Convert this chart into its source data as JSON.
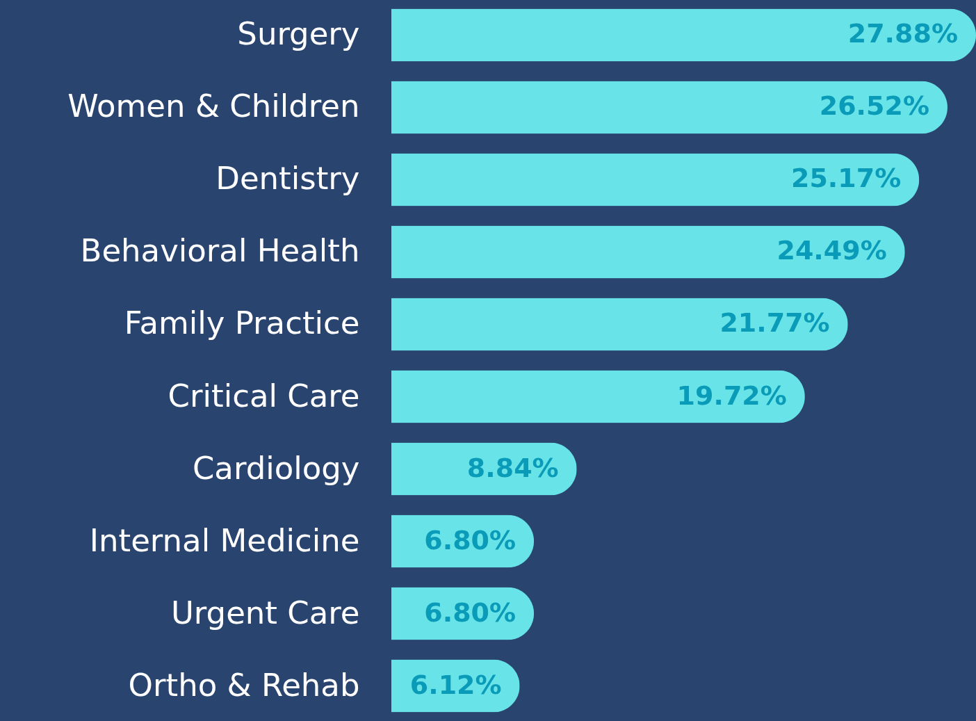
{
  "chart_data": {
    "type": "bar",
    "orientation": "horizontal",
    "categories": [
      "Surgery",
      "Women & Children",
      "Dentistry",
      "Behavioral Health",
      "Family Practice",
      "Critical Care",
      "Cardiology",
      "Internal Medicine",
      "Urgent Care",
      "Ortho & Rehab"
    ],
    "values": [
      27.88,
      26.52,
      25.17,
      24.49,
      21.77,
      19.72,
      8.84,
      6.8,
      6.8,
      6.12
    ],
    "value_labels": [
      "27.88%",
      "26.52%",
      "25.17%",
      "24.49%",
      "21.77%",
      "19.72%",
      "8.84%",
      "6.80%",
      "6.80%",
      "6.12%"
    ],
    "color": "#68e4e8",
    "tick_labels": "y"
  }
}
